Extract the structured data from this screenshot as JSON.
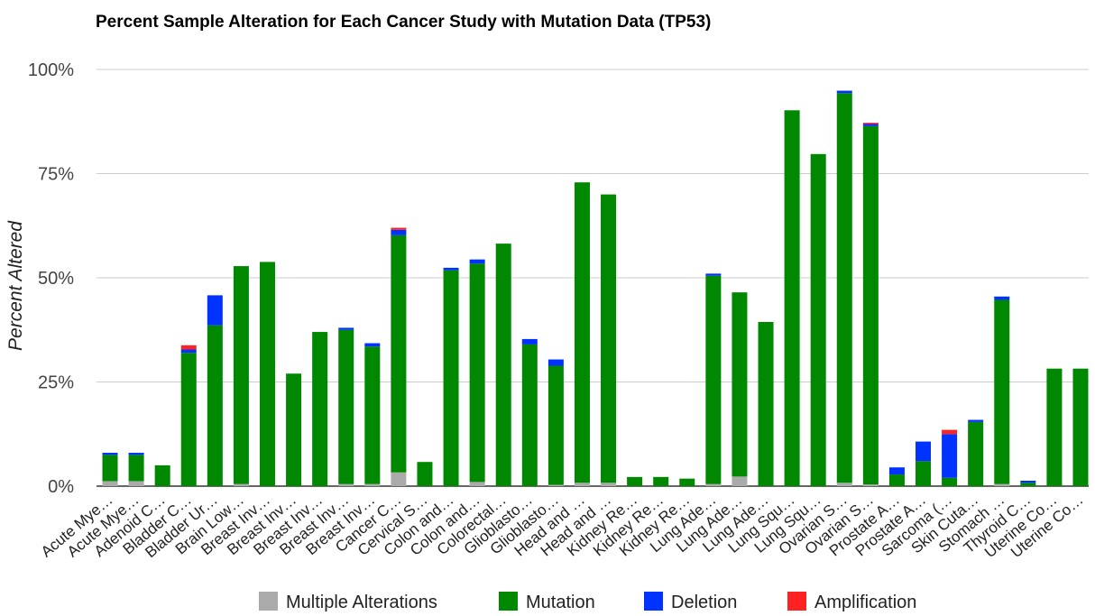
{
  "chart_data": {
    "type": "bar",
    "stacked": true,
    "title": "Percent Sample Alteration for Each Cancer Study with Mutation Data (TP53)",
    "ylabel": "Percent Altered",
    "xlabel": "",
    "ylim": [
      0,
      100
    ],
    "yticks": [
      "0%",
      "25%",
      "50%",
      "75%",
      "100%"
    ],
    "grid": true,
    "legend_position": "bottom",
    "categories": [
      "Acute Mye…",
      "Acute Mye…",
      "Adenoid C…",
      "Bladder C…",
      "Bladder Ur…",
      "Brain Low…",
      "Breast Inv…",
      "Breast Inv…",
      "Breast Inv…",
      "Breast Inv…",
      "Breast Inv…",
      "Cancer C…",
      "Cervical S…",
      "Colon and…",
      "Colon and…",
      "Colorectal…",
      "Glioblasto…",
      "Glioblasto…",
      "Head and …",
      "Head and …",
      "Kidney Re…",
      "Kidney Re…",
      "Kidney Re…",
      "Lung Ade…",
      "Lung Ade…",
      "Lung Ade…",
      "Lung Squ…",
      "Lung Squ…",
      "Ovarian S…",
      "Ovarian S…",
      "Prostate A…",
      "Prostate A…",
      "Sarcoma (…",
      "Skin Cuta…",
      "Stomach …",
      "Thyroid C…",
      "Uterine Co…",
      "Uterine Co…"
    ],
    "series": [
      {
        "name": "Multiple Alterations",
        "color": "#aaaaaa",
        "values": [
          1.2,
          1.2,
          0,
          0,
          0,
          0.5,
          0,
          0,
          0,
          0.5,
          0.5,
          3.3,
          0,
          0,
          1.0,
          0,
          0,
          0.3,
          0.8,
          0.8,
          0,
          0,
          0,
          0.5,
          2.3,
          0,
          0,
          0,
          0.8,
          0.4,
          0,
          0,
          0,
          0,
          0.5,
          0,
          0,
          0
        ]
      },
      {
        "name": "Mutation",
        "color": "#008800",
        "values": [
          6.3,
          6.3,
          5.0,
          32.0,
          38.6,
          52.3,
          53.8,
          27.0,
          37.0,
          37.0,
          33.0,
          56.9,
          5.8,
          51.8,
          52.4,
          58.2,
          34.0,
          28.6,
          72.1,
          69.2,
          2.2,
          2.2,
          1.8,
          50.0,
          44.2,
          39.4,
          90.2,
          79.7,
          93.5,
          86.0,
          2.8,
          6.0,
          2.0,
          15.4,
          44.2,
          0.8,
          28.2,
          28.2
        ]
      },
      {
        "name": "Deletion",
        "color": "#0033ff",
        "values": [
          0.5,
          0.5,
          0,
          0.8,
          7.2,
          0,
          0,
          0,
          0,
          0.5,
          0.8,
          1.3,
          0,
          0.6,
          1.0,
          0,
          1.3,
          1.5,
          0,
          0,
          0,
          0,
          0,
          0.5,
          0,
          0,
          0,
          0,
          0.6,
          0.5,
          1.7,
          4.7,
          10.5,
          0.5,
          0.8,
          0.5,
          0,
          0
        ]
      },
      {
        "name": "Amplification",
        "color": "#ff2222",
        "values": [
          0,
          0,
          0,
          1.0,
          0,
          0,
          0,
          0,
          0,
          0,
          0,
          0.5,
          0,
          0,
          0,
          0,
          0,
          0,
          0,
          0,
          0,
          0,
          0,
          0,
          0,
          0,
          0,
          0,
          0,
          0.3,
          0,
          0,
          1.0,
          0,
          0,
          0,
          0,
          0
        ]
      }
    ]
  },
  "legend": [
    {
      "label": "Multiple Alterations",
      "color": "#aaaaaa"
    },
    {
      "label": "Mutation",
      "color": "#008800"
    },
    {
      "label": "Deletion",
      "color": "#0033ff"
    },
    {
      "label": "Amplification",
      "color": "#ff2222"
    }
  ]
}
